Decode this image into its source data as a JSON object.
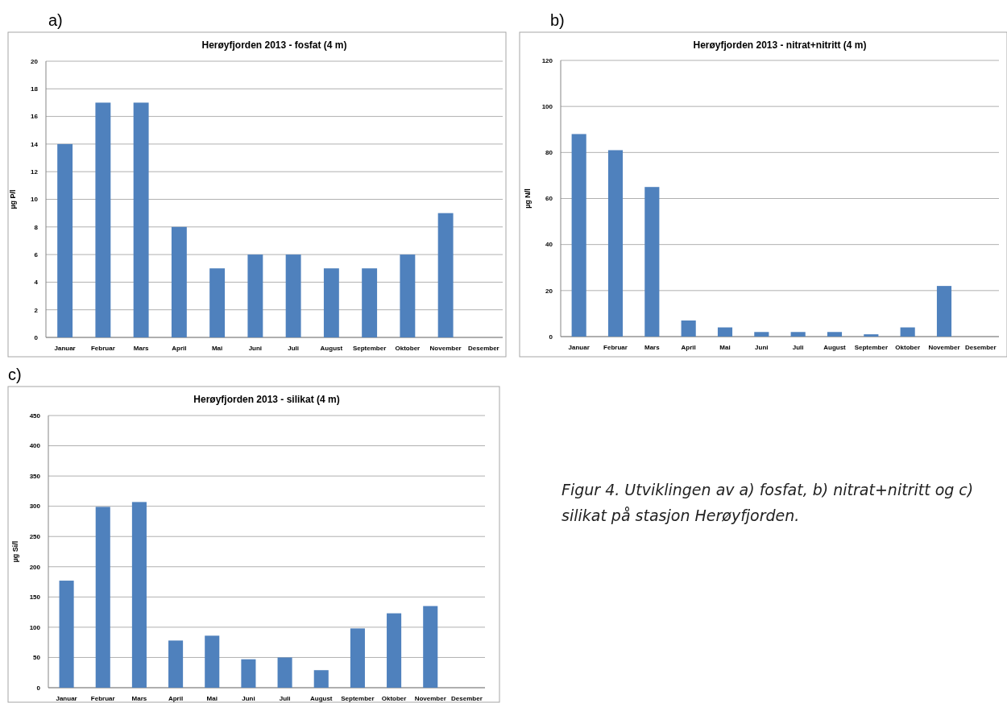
{
  "chart_data": [
    {
      "type": "bar",
      "title": "Herøyfjorden 2013 - fosfat (4 m)",
      "ylabel": "µg P/l",
      "annotations": [
        "a)"
      ],
      "categories": [
        "Januar",
        "Februar",
        "Mars",
        "April",
        "Mai",
        "Juni",
        "Juli",
        "August",
        "September",
        "Oktober",
        "November",
        "Desember"
      ],
      "values": [
        14,
        17,
        17,
        8,
        5,
        6,
        6,
        5,
        5,
        6,
        9,
        null
      ],
      "color": "#4f81bd",
      "ylim": [
        0,
        20
      ],
      "yticks": [
        0,
        2,
        4,
        6,
        8,
        10,
        12,
        14,
        16,
        18,
        20
      ],
      "grid": "y"
    },
    {
      "type": "bar",
      "title": "Herøyfjorden 2013 - nitrat+nitritt (4 m)",
      "ylabel": "µg N/l",
      "annotations": [
        "b)"
      ],
      "categories": [
        "Januar",
        "Februar",
        "Mars",
        "April",
        "Mai",
        "Juni",
        "Juli",
        "August",
        "September",
        "Oktober",
        "November",
        "Desember"
      ],
      "values": [
        88,
        81,
        65,
        7,
        4,
        2,
        2,
        2,
        1,
        4,
        22,
        null
      ],
      "color": "#4f81bd",
      "ylim": [
        0,
        120
      ],
      "yticks": [
        0,
        20,
        40,
        60,
        80,
        100,
        120
      ],
      "grid": "y"
    },
    {
      "type": "bar",
      "title": "Herøyfjorden 2013 - silikat (4 m)",
      "ylabel": "µg Si/l",
      "annotations": [
        "c)",
        "Figur 4. Utviklingen av a) fosfat, b) nitrat+nitritt og c) silikat på stasjon Herøyfjorden."
      ],
      "categories": [
        "Januar",
        "Februar",
        "Mars",
        "April",
        "Mai",
        "Juni",
        "Juli",
        "August",
        "September",
        "Oktober",
        "November",
        "Desember"
      ],
      "values": [
        177,
        299,
        307,
        78,
        86,
        47,
        50,
        29,
        98,
        123,
        135,
        null
      ],
      "color": "#4f81bd",
      "ylim": [
        0,
        450
      ],
      "yticks": [
        0,
        50,
        100,
        150,
        200,
        250,
        300,
        350,
        400,
        450
      ],
      "grid": "y"
    }
  ]
}
